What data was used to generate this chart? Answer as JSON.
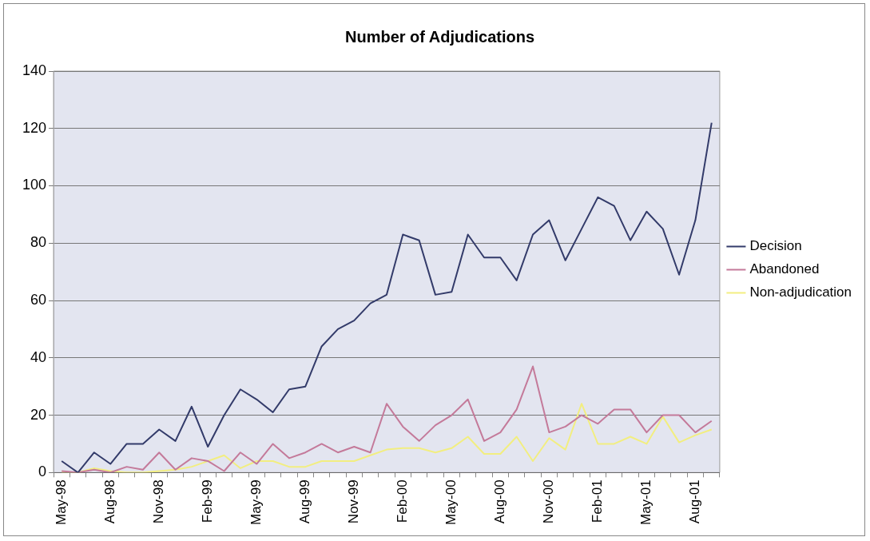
{
  "chart_data": {
    "type": "line",
    "title": "Number of Adjudications",
    "categories": [
      "May-98",
      null,
      null,
      "Aug-98",
      null,
      null,
      "Nov-98",
      null,
      null,
      "Feb-99",
      null,
      null,
      "May-99",
      null,
      null,
      "Aug-99",
      null,
      null,
      "Nov-99",
      null,
      null,
      "Feb-00",
      null,
      null,
      "May-00",
      null,
      null,
      "Aug-00",
      null,
      null,
      "Nov-00",
      null,
      null,
      "Feb-01",
      null,
      null,
      "May-01",
      null,
      null,
      "Aug-01",
      null
    ],
    "series": [
      {
        "name": "Decision",
        "color": "#333b6a",
        "values": [
          4,
          0,
          7,
          3,
          10,
          10,
          15,
          11,
          23,
          9,
          20,
          29,
          25.5,
          21,
          29,
          30,
          44,
          50,
          53,
          59,
          62,
          83,
          81,
          62,
          63,
          83,
          75,
          75,
          67,
          83,
          88,
          74,
          85,
          96,
          93,
          81,
          91,
          85,
          69,
          88,
          122
        ]
      },
      {
        "name": "Abandoned",
        "color": "#c47a9a",
        "values": [
          0.5,
          0,
          1,
          0,
          2,
          1,
          7,
          1,
          5,
          4,
          0.5,
          7,
          3,
          10,
          5,
          7,
          10,
          7,
          9,
          7,
          24,
          16,
          11,
          16.5,
          20,
          25.5,
          11,
          14,
          22,
          37,
          14,
          16,
          20,
          17,
          22,
          22,
          14,
          20,
          20,
          14,
          18
        ]
      },
      {
        "name": "Non-adjudication",
        "color": "#f2ee80",
        "values": [
          0,
          0,
          1.5,
          0.5,
          0,
          0,
          0.5,
          1,
          2,
          4,
          6,
          1.5,
          4,
          4,
          2,
          2,
          4,
          4,
          4,
          6,
          8,
          8.5,
          8.5,
          7,
          8.5,
          12.5,
          6.5,
          6.5,
          12.5,
          4,
          12,
          8,
          24,
          10,
          10,
          12.5,
          10,
          19.5,
          10.5,
          13,
          15
        ]
      }
    ],
    "ylim": [
      0,
      140
    ],
    "yticks": [
      0,
      20,
      40,
      60,
      80,
      100,
      120,
      140
    ],
    "grid": "y",
    "legend": "right",
    "marker": "none",
    "line_style": "solid"
  }
}
